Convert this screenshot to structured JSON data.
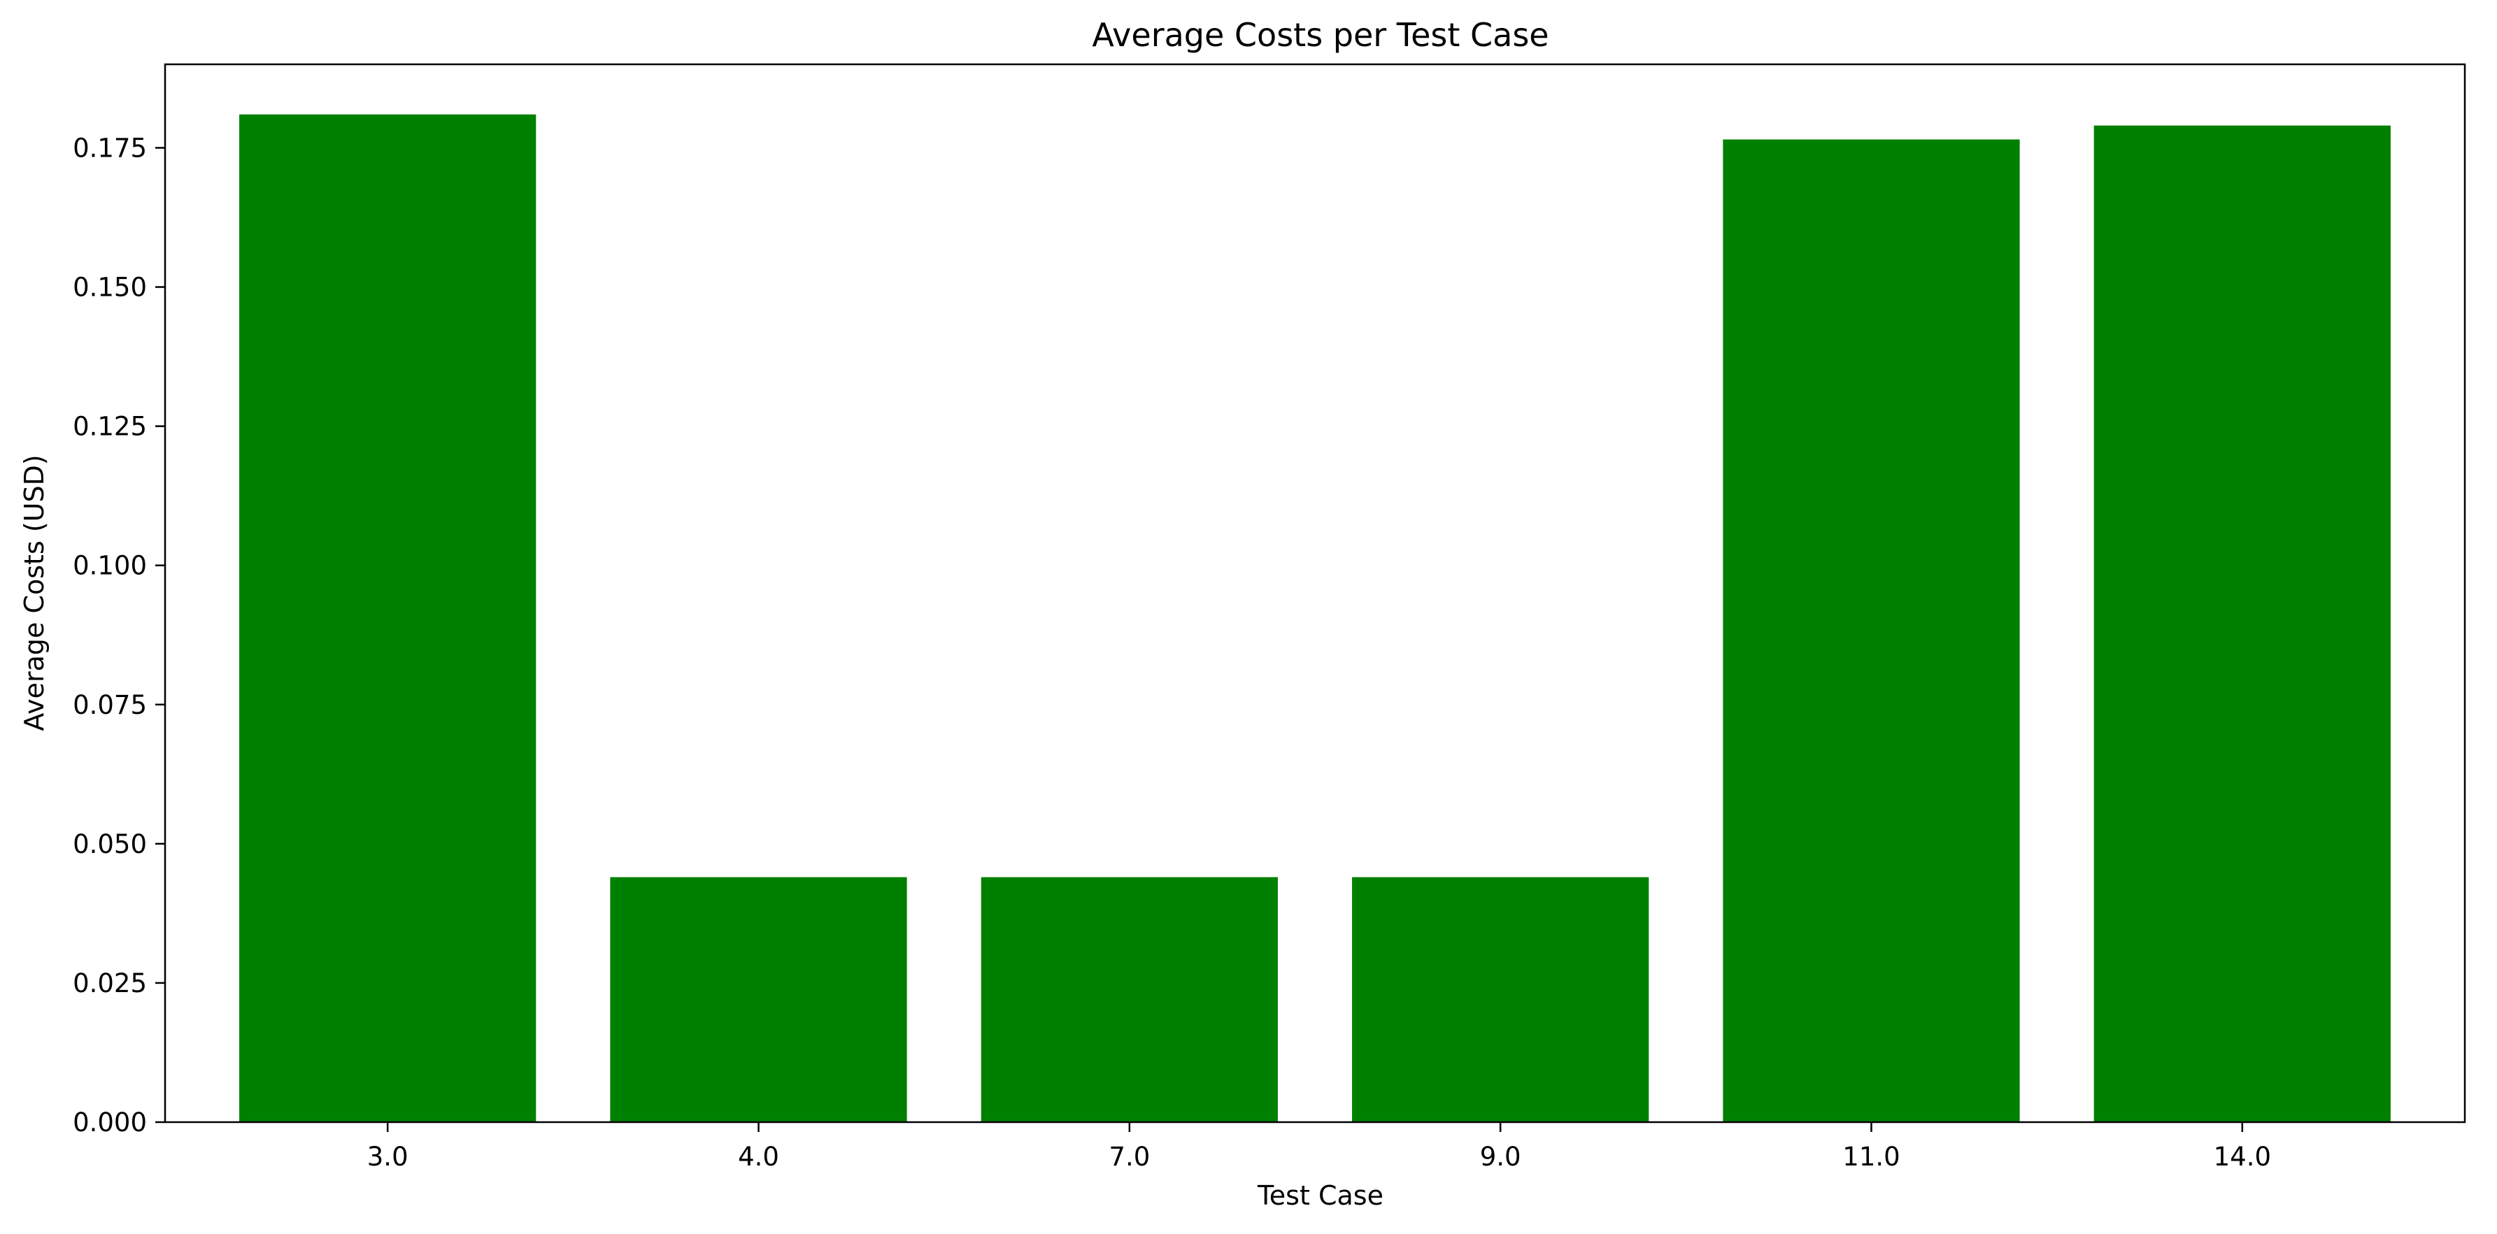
{
  "chart_data": {
    "type": "bar",
    "title": "Average Costs per Test Case",
    "xlabel": "Test Case",
    "ylabel": "Average Costs (USD)",
    "categories": [
      "3.0",
      "4.0",
      "7.0",
      "9.0",
      "11.0",
      "14.0"
    ],
    "values": [
      0.181,
      0.044,
      0.044,
      0.044,
      0.1765,
      0.179
    ],
    "ylim": [
      0,
      0.19
    ],
    "yticks": [
      "0.000",
      "0.025",
      "0.050",
      "0.075",
      "0.100",
      "0.125",
      "0.150",
      "0.175"
    ],
    "grid": false,
    "legend": "none",
    "bar_color": "#008000"
  }
}
